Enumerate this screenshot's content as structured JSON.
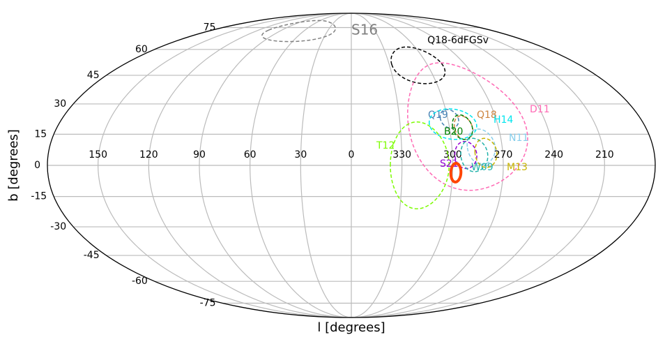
{
  "chart_data": {
    "type": "mollweide",
    "xlabel": "l  [degrees]",
    "ylabel": "b  [degrees]",
    "xlim": [
      180,
      -180
    ],
    "ylim": [
      -90,
      90
    ],
    "xticks": [
      150,
      120,
      90,
      60,
      30,
      0,
      330,
      300,
      270,
      240,
      210
    ],
    "yticks": [
      75,
      60,
      45,
      30,
      15,
      0,
      -15,
      -30,
      -45,
      -60,
      -75
    ],
    "grid": true,
    "series": [
      {
        "name": "S16",
        "color": "#808080",
        "center": [
          64,
          73
        ],
        "radius": [
          43,
          8
        ]
      },
      {
        "name": "Q18-6dFGSv",
        "color": "#000000",
        "center": [
          308,
          51
        ],
        "radius": [
          20,
          10.5
        ]
      },
      {
        "name": "D11",
        "color": "#ff69b4",
        "center": [
          289,
          20
        ],
        "radius": [
          36,
          32
        ]
      },
      {
        "name": "Q19",
        "color": "#4682b4",
        "center": [
          299,
          22.6
        ],
        "radius": [
          5.6,
          4.6
        ]
      },
      {
        "name": "Q18",
        "color": "#cd853f",
        "center": [
          291.4,
          18.2
        ],
        "radius": [
          5.5,
          5.8
        ]
      },
      {
        "name": "H14",
        "color": "#00e5ee",
        "center": [
          297.5,
          20
        ],
        "radius": [
          14.5,
          7.5
        ]
      },
      {
        "name": "B20",
        "color": "#008000",
        "center": [
          292,
          18.5
        ],
        "radius": [
          6,
          6
        ]
      },
      {
        "name": "N11",
        "color": "#87ceeb",
        "center": [
          282.5,
          9
        ],
        "radius": [
          8.3,
          8.5
        ]
      },
      {
        "name": "T12",
        "color": "#7cfc00",
        "center": [
          319.5,
          0
        ],
        "radius": [
          17.4,
          21
        ]
      },
      {
        "name": "S21",
        "color": "#9400d3",
        "center": [
          292,
          5
        ],
        "radius": [
          6.5,
          6.5
        ]
      },
      {
        "name": "W09",
        "color": "#20b2aa",
        "center": [
          287,
          5
        ],
        "radius": [
          8,
          8
        ]
      },
      {
        "name": "M13",
        "color": "#c8b400",
        "center": [
          280,
          6
        ],
        "radius": [
          6.5,
          7
        ]
      },
      {
        "name": null,
        "color": "#ff4500",
        "center": [
          298,
          -3.5
        ],
        "radius": [
          3,
          4.5
        ]
      }
    ]
  }
}
